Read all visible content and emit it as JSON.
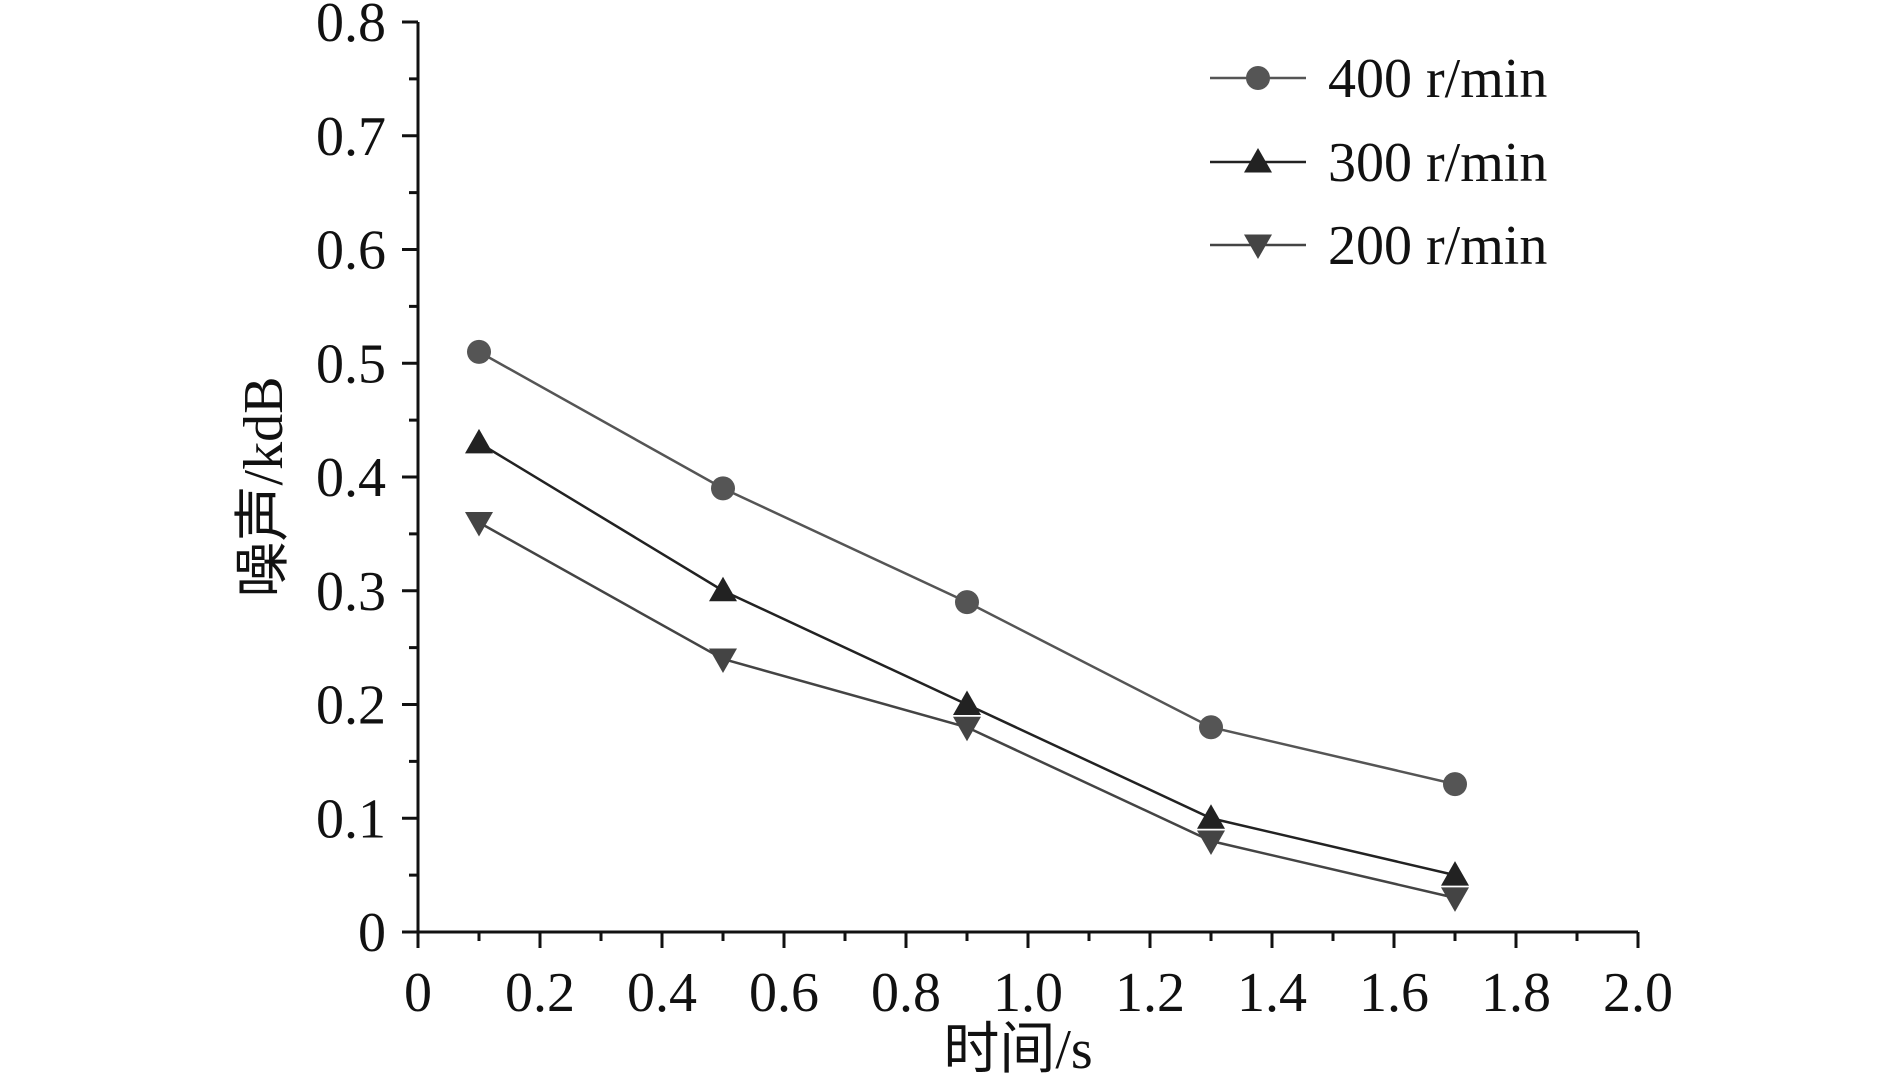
{
  "chart_data": {
    "type": "line",
    "title": "",
    "xlabel": "时间/s",
    "ylabel": "噪声/kdB",
    "xlim": [
      0,
      2.0
    ],
    "ylim": [
      0,
      0.8
    ],
    "x_ticks": [
      "0",
      "0.2",
      "0.4",
      "0.6",
      "0.8",
      "1.0",
      "1.2",
      "1.4",
      "1.6",
      "1.8",
      "2.0"
    ],
    "y_ticks": [
      "0",
      "0.1",
      "0.2",
      "0.3",
      "0.4",
      "0.5",
      "0.6",
      "0.7",
      "0.8"
    ],
    "x": [
      0.1,
      0.5,
      0.9,
      1.3,
      1.7
    ],
    "series": [
      {
        "name": "400 r/min",
        "marker": "circle",
        "color": "#555555",
        "values": [
          0.51,
          0.39,
          0.29,
          0.18,
          0.13
        ]
      },
      {
        "name": "300 r/min",
        "marker": "triangle-up",
        "color": "#222222",
        "values": [
          0.43,
          0.3,
          0.2,
          0.1,
          0.05
        ]
      },
      {
        "name": "200 r/min",
        "marker": "triangle-down",
        "color": "#444444",
        "values": [
          0.36,
          0.24,
          0.18,
          0.08,
          0.03
        ]
      }
    ],
    "legend_position": "top-right",
    "grid": false
  }
}
